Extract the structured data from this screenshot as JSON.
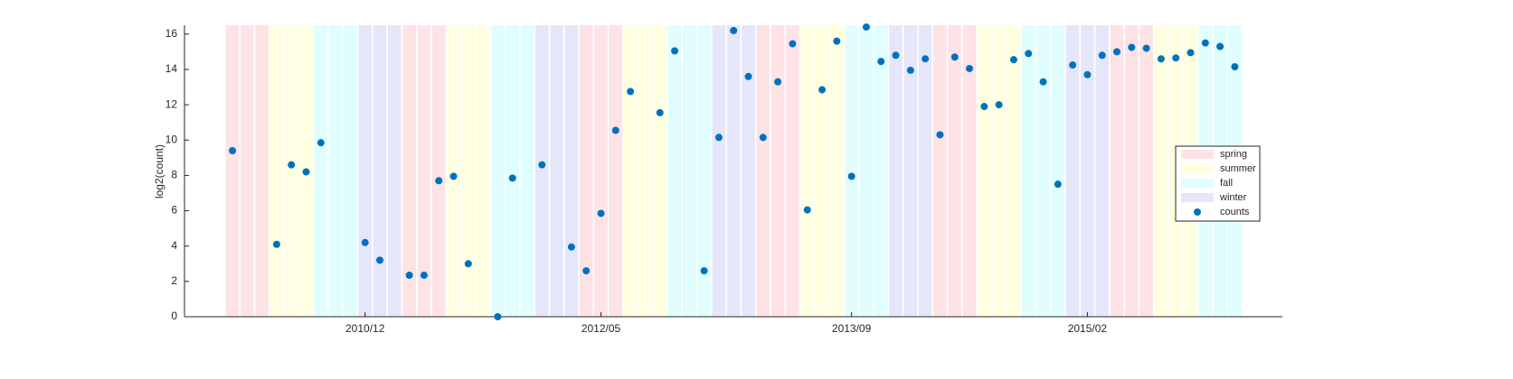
{
  "chart_data": {
    "type": "scatter",
    "ylabel": "log2(count)",
    "categories": [
      null,
      null,
      null,
      null,
      null,
      null,
      null,
      null,
      null,
      "2010/12",
      null,
      null,
      null,
      null,
      null,
      null,
      null,
      null,
      null,
      null,
      null,
      null,
      null,
      null,
      null,
      "2012/05",
      null,
      null,
      null,
      null,
      null,
      null,
      null,
      null,
      null,
      null,
      null,
      null,
      null,
      null,
      null,
      null,
      "2013/09",
      null,
      null,
      null,
      null,
      null,
      null,
      null,
      null,
      null,
      null,
      null,
      null,
      null,
      null,
      null,
      "2015/02",
      null,
      null,
      null,
      null,
      null,
      null,
      null,
      null,
      null,
      null
    ],
    "ylim": [
      0,
      16.5
    ],
    "yticks": [
      0,
      2,
      4,
      6,
      8,
      10,
      12,
      14,
      16
    ],
    "seasons": [
      {
        "name": "spring",
        "color": "#fde3e6"
      },
      {
        "name": "summer",
        "color": "#fefee0"
      },
      {
        "name": "fall",
        "color": "#e0fefe"
      },
      {
        "name": "winter",
        "color": "#e6e6fa"
      }
    ],
    "month_season": [
      "spring",
      "spring",
      "spring",
      "summer",
      "summer",
      "summer",
      "fall",
      "fall",
      "fall",
      "winter",
      "winter",
      "winter",
      "spring",
      "spring",
      "spring",
      "summer",
      "summer",
      "summer",
      "fall",
      "fall",
      "fall",
      "winter",
      "winter",
      "winter",
      "spring",
      "spring",
      "spring",
      "summer",
      "summer",
      "summer",
      "fall",
      "fall",
      "fall",
      "winter",
      "winter",
      "winter",
      "spring",
      "spring",
      "spring",
      "summer",
      "summer",
      "summer",
      "fall",
      "fall",
      "fall",
      "winter",
      "winter",
      "winter",
      "spring",
      "spring",
      "spring",
      "summer",
      "summer",
      "summer",
      "fall",
      "fall",
      "fall",
      "winter",
      "winter",
      "winter",
      "spring",
      "spring",
      "spring",
      "summer",
      "summer",
      "summer",
      "fall",
      "fall",
      "fall"
    ],
    "series": [
      {
        "name": "counts",
        "color": "#0072bd",
        "values": [
          9.4,
          null,
          null,
          4.1,
          8.6,
          8.2,
          9.85,
          null,
          null,
          4.2,
          3.2,
          null,
          2.35,
          2.35,
          7.7,
          7.95,
          3.0,
          null,
          0,
          7.85,
          null,
          8.6,
          null,
          3.95,
          2.6,
          5.85,
          10.55,
          12.75,
          null,
          11.55,
          15.05,
          null,
          2.6,
          10.15,
          16.2,
          13.6,
          10.15,
          13.3,
          15.45,
          6.05,
          12.85,
          15.6,
          7.95,
          16.4,
          14.45,
          14.8,
          13.95,
          14.6,
          10.3,
          14.7,
          14.05,
          11.9,
          12.0,
          14.55,
          14.9,
          13.3,
          7.5,
          14.25,
          13.7,
          14.8,
          15.0,
          15.25,
          15.2,
          14.6,
          14.65,
          14.95,
          15.5,
          15.3,
          14.15
        ]
      }
    ]
  }
}
